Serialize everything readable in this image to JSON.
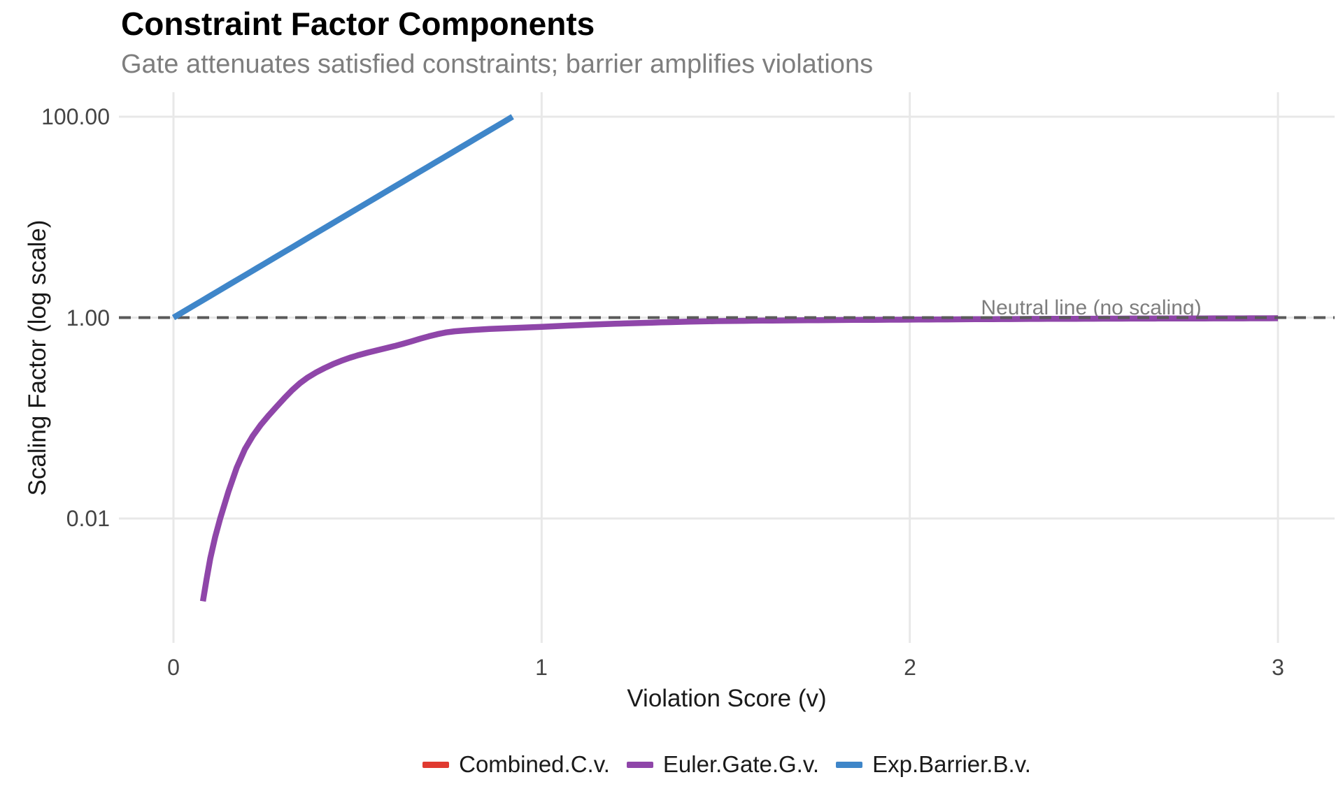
{
  "chart_data": {
    "type": "line",
    "title": "Constraint Factor Components",
    "subtitle": "Gate attenuates satisfied constraints; barrier amplifies violations",
    "xlabel": "Violation Score (v)",
    "ylabel": "Scaling Factor (log scale)",
    "x_axis": {
      "min": 0,
      "max": 3,
      "ticks": [
        {
          "value": 0,
          "label": "0"
        },
        {
          "value": 1,
          "label": "1"
        },
        {
          "value": 2,
          "label": "2"
        },
        {
          "value": 3,
          "label": "3"
        }
      ]
    },
    "y_axis": {
      "scale": "log10",
      "panel_value_range": [
        0.0006,
        175
      ],
      "ticks": [
        {
          "value": 100,
          "label": "100.00"
        },
        {
          "value": 1,
          "label": "1.00"
        },
        {
          "value": 0.01,
          "label": "0.01"
        }
      ]
    },
    "grid": "major gridlines only, light gray on white panel",
    "legend_position": "bottom",
    "reference_line": {
      "y": 1.0,
      "style": "dashed",
      "color": "#5A5A5A",
      "label": "Neutral line (no scaling)",
      "label_x": 2.5
    },
    "draw_order": [
      "series:0",
      "series:1",
      "reference_line",
      "series:2"
    ],
    "series": [
      {
        "name": "Combined.C.v.",
        "color": "#E03A30",
        "visible_in_plot": false,
        "note": "only the legend key is visible; the curve is fully overplotted by the other series",
        "points": []
      },
      {
        "name": "Euler.Gate.G.v.",
        "color": "#8F46A9",
        "visible_in_plot": true,
        "note": "gate rises steeply from ~0.0015 at v=0.08 and saturates toward 1 (approaches neutral line)",
        "points": [
          [
            0.08,
            0.0015
          ],
          [
            0.1,
            0.004
          ],
          [
            0.127,
            0.01
          ],
          [
            0.194,
            0.049
          ],
          [
            0.28,
            0.13
          ],
          [
            0.365,
            0.254
          ],
          [
            0.479,
            0.398
          ],
          [
            0.6,
            0.52
          ],
          [
            0.764,
            0.73
          ],
          [
            1.0,
            0.81
          ],
          [
            1.25,
            0.88
          ],
          [
            1.5,
            0.925
          ],
          [
            2.0,
            0.955
          ],
          [
            2.5,
            0.975
          ],
          [
            3.0,
            0.985
          ]
        ]
      },
      {
        "name": "Exp.Barrier.B.v.",
        "color": "#3F86C9",
        "visible_in_plot": true,
        "note": "exponential barrier ~ exp(5v), straight on log scale from (0,1), clipped at 100 near v=0.92",
        "points": [
          [
            0,
            1
          ],
          [
            0.2,
            2.718
          ],
          [
            0.4,
            7.389
          ],
          [
            0.6,
            20.09
          ],
          [
            0.8,
            54.6
          ],
          [
            0.921,
            100
          ]
        ]
      }
    ]
  },
  "colors": {
    "background": "#FFFFFF",
    "gridline": "#E8E8E8",
    "subtitle_text": "#7E7E7E",
    "tick_label": "#454545",
    "axis_title": "#1A1A1A",
    "legend_text": "#1A1A1A",
    "annotation_text": "#7D7D7D"
  }
}
